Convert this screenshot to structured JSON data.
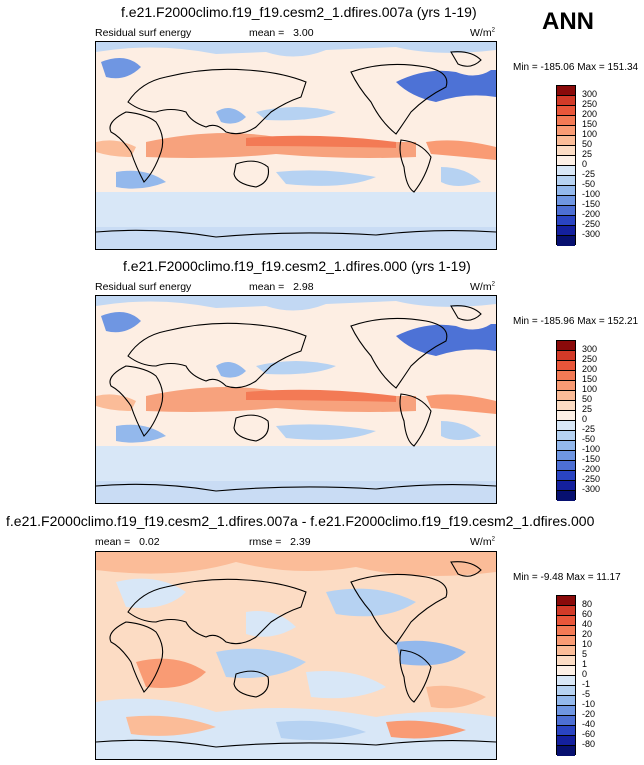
{
  "headline": "ANN",
  "panels": [
    {
      "title": "f.e21.F2000climo.f19_f19.cesm2_1.dfires.007a (yrs 1-19)",
      "variable": "Residual surf energy",
      "stat_label": "mean =",
      "stat_value": "3.00",
      "units": "W/m",
      "units_exp": "2",
      "min_text": "Min = -185.06",
      "max_text": "Max = 151.34",
      "levels": [
        "300",
        "250",
        "200",
        "150",
        "100",
        "50",
        "25",
        "0",
        "-25",
        "-50",
        "-100",
        "-150",
        "-200",
        "-250",
        "-300"
      ],
      "colors": [
        "#8a0a0a",
        "#d23a28",
        "#e9563a",
        "#f37a55",
        "#f99b74",
        "#fbbc98",
        "#fcdcc4",
        "#fdf0e6",
        "#d8e7f7",
        "#b6d2f2",
        "#93b8ec",
        "#6f96e2",
        "#4d6fd4",
        "#2a44c2",
        "#14209e",
        "#071070"
      ]
    },
    {
      "title": "f.e21.F2000climo.f19_f19.cesm2_1.dfires.000 (yrs 1-19)",
      "variable": "Residual surf energy",
      "stat_label": "mean =",
      "stat_value": "2.98",
      "units": "W/m",
      "units_exp": "2",
      "min_text": "Min = -185.96",
      "max_text": "Max = 152.21",
      "levels": [
        "300",
        "250",
        "200",
        "150",
        "100",
        "50",
        "25",
        "0",
        "-25",
        "-50",
        "-100",
        "-150",
        "-200",
        "-250",
        "-300"
      ],
      "colors": [
        "#8a0a0a",
        "#d23a28",
        "#e9563a",
        "#f37a55",
        "#f99b74",
        "#fbbc98",
        "#fcdcc4",
        "#fdf0e6",
        "#d8e7f7",
        "#b6d2f2",
        "#93b8ec",
        "#6f96e2",
        "#4d6fd4",
        "#2a44c2",
        "#14209e",
        "#071070"
      ]
    },
    {
      "title": "f.e21.F2000climo.f19_f19.cesm2_1.dfires.007a - f.e21.F2000climo.f19_f19.cesm2_1.dfires.000",
      "variable": "",
      "stat_label": "mean =",
      "stat_value": "0.02",
      "stat2_label": "rmse =",
      "stat2_value": "2.39",
      "units": "W/m",
      "units_exp": "2",
      "min_text": "Min = -9.48",
      "max_text": "Max = 11.17",
      "levels": [
        "80",
        "60",
        "40",
        "20",
        "10",
        "5",
        "1",
        "0",
        "-1",
        "-5",
        "-10",
        "-20",
        "-40",
        "-60",
        "-80"
      ],
      "colors": [
        "#8a0a0a",
        "#d23a28",
        "#e9563a",
        "#f37a55",
        "#f99b74",
        "#fbbc98",
        "#fcdcc4",
        "#fdf0e6",
        "#d8e7f7",
        "#b6d2f2",
        "#93b8ec",
        "#6f96e2",
        "#4d6fd4",
        "#2a44c2",
        "#14209e",
        "#071070"
      ]
    }
  ]
}
